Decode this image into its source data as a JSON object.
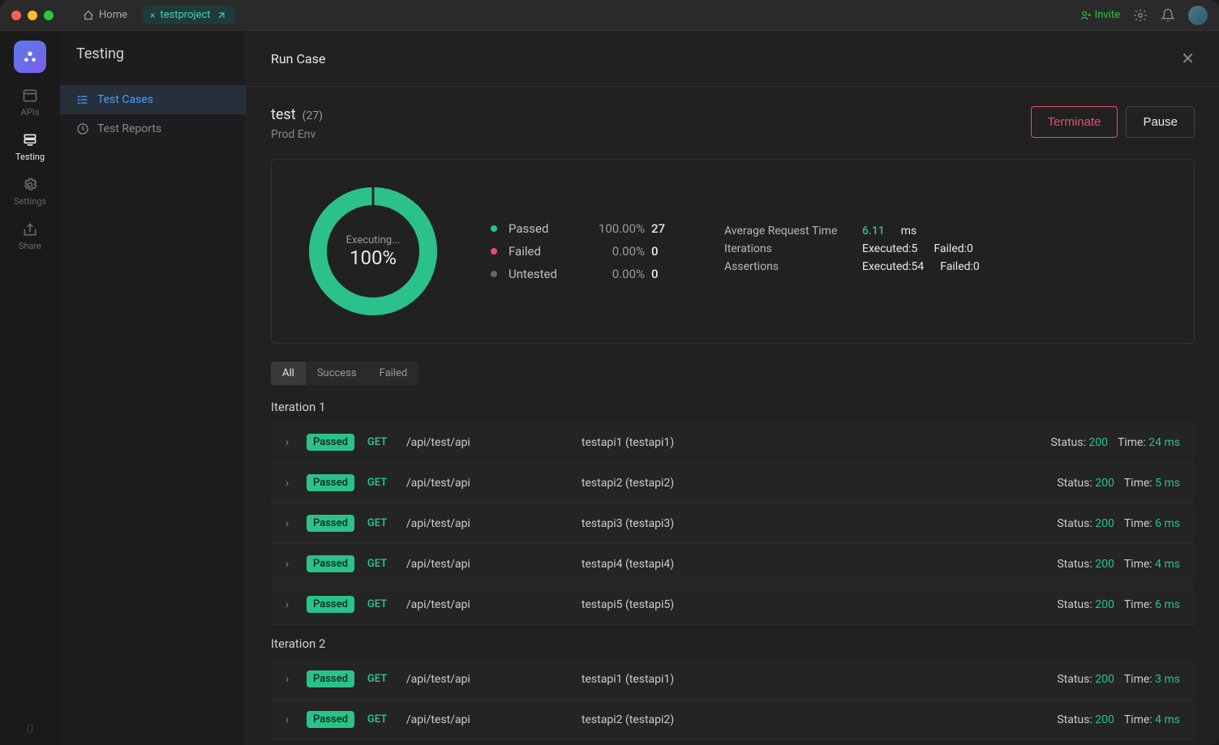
{
  "titlebar": {
    "home_label": "Home",
    "project_label": "testproject",
    "invite_label": "Invite"
  },
  "rail": {
    "items": [
      {
        "label": "APIs"
      },
      {
        "label": "Testing"
      },
      {
        "label": "Settings"
      },
      {
        "label": "Share"
      }
    ]
  },
  "sidebar": {
    "title": "Testing",
    "items": [
      {
        "label": "Test Cases"
      },
      {
        "label": "Test Reports"
      }
    ]
  },
  "main": {
    "header_title": "Run Case",
    "run_name": "test",
    "run_count": "(27)",
    "env": "Prod Env",
    "terminate_label": "Terminate",
    "pause_label": "Pause"
  },
  "donut": {
    "percent": 100,
    "executing_label": "Executing...",
    "percent_text": "100%",
    "color_passed": "#2ac28a",
    "color_track": "#333333"
  },
  "stats": {
    "passed_label": "Passed",
    "passed_pct": "100.00%",
    "passed_count": "27",
    "failed_label": "Failed",
    "failed_pct": "0.00%",
    "failed_count": "0",
    "untested_label": "Untested",
    "untested_pct": "0.00%",
    "untested_count": "0"
  },
  "meta": {
    "avg_label": "Average Request Time",
    "avg_val": "6.11",
    "avg_unit": "ms",
    "iter_label": "Iterations",
    "iter_exec": "Executed:5",
    "iter_fail": "Failed:0",
    "assert_label": "Assertions",
    "assert_exec": "Executed:54",
    "assert_fail": "Failed:0"
  },
  "filters": {
    "all": "All",
    "success": "Success",
    "failed": "Failed"
  },
  "iterations": [
    {
      "title": "Iteration 1",
      "rows": [
        {
          "badge": "Passed",
          "method": "GET",
          "path": "/api/test/api",
          "name": "testapi1 (testapi1)",
          "status": "200",
          "time": "24 ms"
        },
        {
          "badge": "Passed",
          "method": "GET",
          "path": "/api/test/api",
          "name": "testapi2 (testapi2)",
          "status": "200",
          "time": "5 ms"
        },
        {
          "badge": "Passed",
          "method": "GET",
          "path": "/api/test/api",
          "name": "testapi3 (testapi3)",
          "status": "200",
          "time": "6 ms"
        },
        {
          "badge": "Passed",
          "method": "GET",
          "path": "/api/test/api",
          "name": "testapi4 (testapi4)",
          "status": "200",
          "time": "4 ms"
        },
        {
          "badge": "Passed",
          "method": "GET",
          "path": "/api/test/api",
          "name": "testapi5 (testapi5)",
          "status": "200",
          "time": "6 ms"
        }
      ]
    },
    {
      "title": "Iteration 2",
      "rows": [
        {
          "badge": "Passed",
          "method": "GET",
          "path": "/api/test/api",
          "name": "testapi1 (testapi1)",
          "status": "200",
          "time": "3 ms"
        },
        {
          "badge": "Passed",
          "method": "GET",
          "path": "/api/test/api",
          "name": "testapi2 (testapi2)",
          "status": "200",
          "time": "4 ms"
        }
      ]
    }
  ],
  "labels": {
    "status": "Status:",
    "time": "Time:"
  },
  "colors": {
    "accent": "#2ac28a",
    "danger": "#e84d6e",
    "bg": "#212121",
    "card_border": "#333333"
  }
}
